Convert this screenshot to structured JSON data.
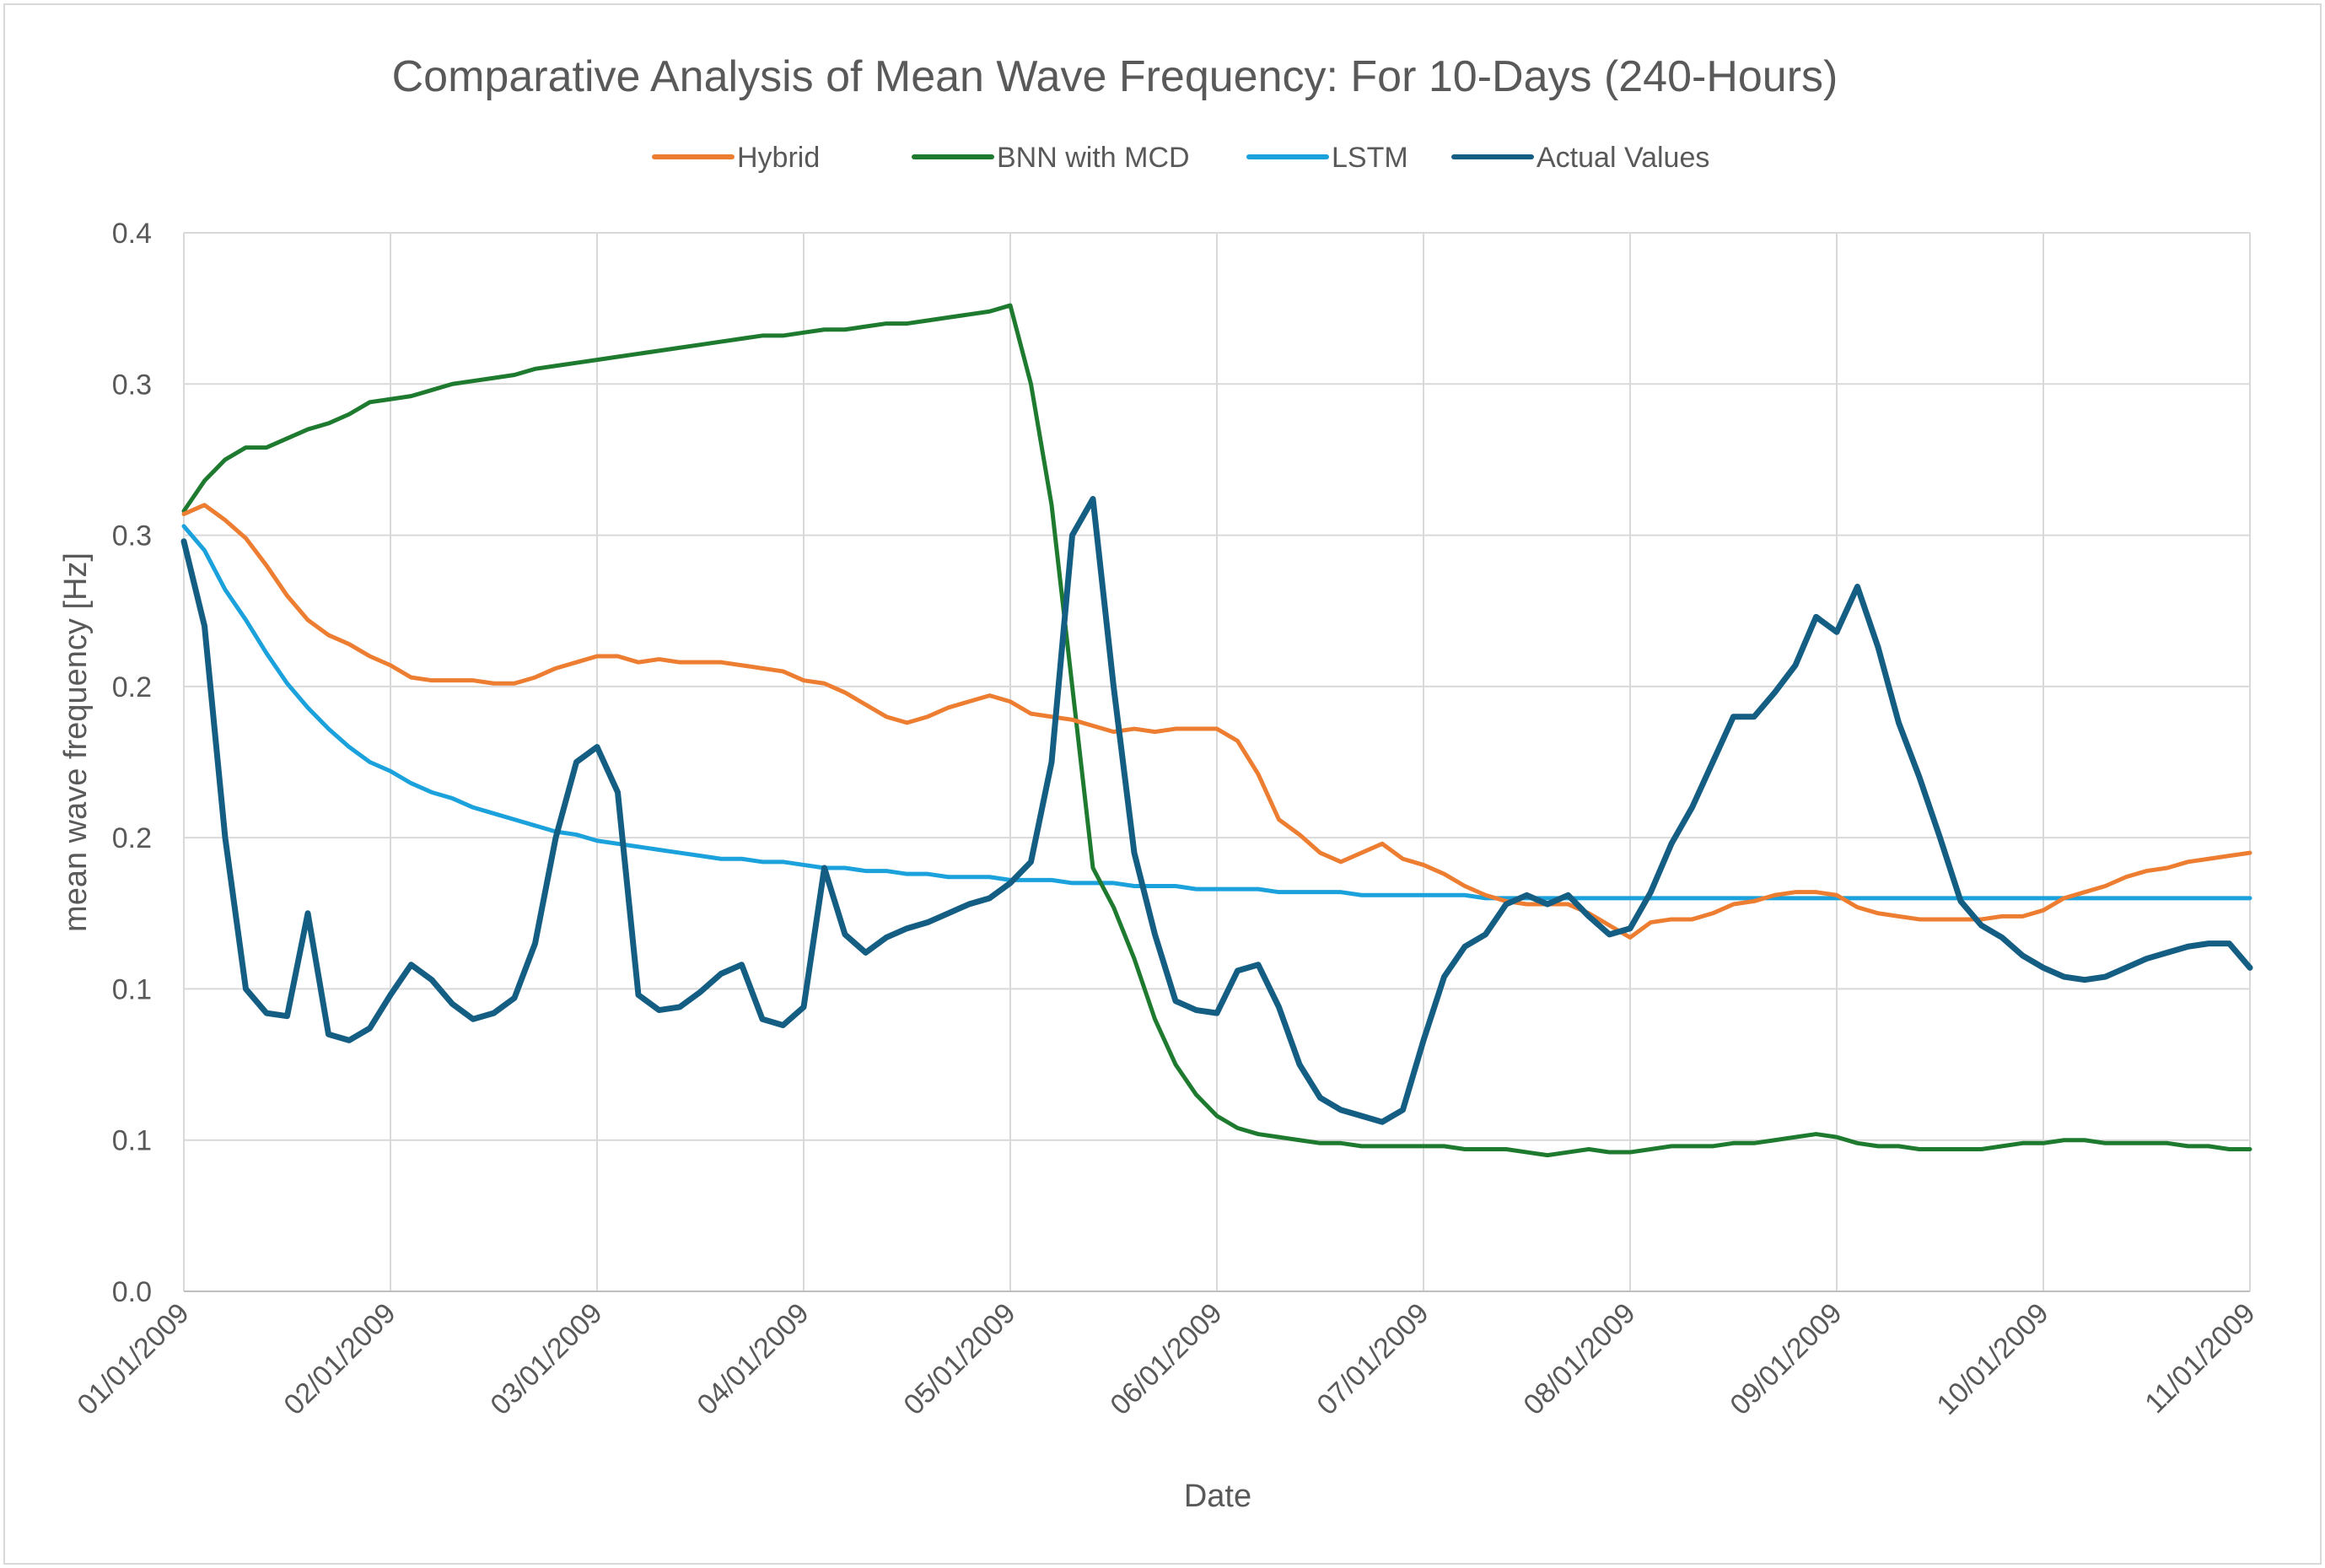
{
  "chart_data": {
    "type": "line",
    "title": "Comparative Analysis of Mean Wave Frequency: For 10-Days (240-Hours)",
    "xlabel": "Date",
    "ylabel": "mean wave frequency [Hz]",
    "x_tick_labels": [
      "01/01/2009",
      "02/01/2009",
      "03/01/2009",
      "04/01/2009",
      "05/01/2009",
      "06/01/2009",
      "07/01/2009",
      "08/01/2009",
      "09/01/2009",
      "10/01/2009",
      "11/01/2009"
    ],
    "y_tick_labels": [
      "0.0",
      "0.1",
      "0.1",
      "0.2",
      "0.2",
      "0.3",
      "0.3",
      "0.4"
    ],
    "y_tick_values": [
      0.0,
      0.05,
      0.1,
      0.15,
      0.2,
      0.25,
      0.3,
      0.35
    ],
    "ylim": [
      0.0,
      0.35
    ],
    "grid": true,
    "legend_position": "top",
    "x_positions_note_free": true,
    "x": [
      0,
      0.1,
      0.2,
      0.3,
      0.4,
      0.5,
      0.6,
      0.7,
      0.8,
      0.9,
      1.0,
      1.1,
      1.2,
      1.3,
      1.4,
      1.5,
      1.6,
      1.7,
      1.8,
      1.9,
      2.0,
      2.1,
      2.2,
      2.3,
      2.4,
      2.5,
      2.6,
      2.7,
      2.8,
      2.9,
      3.0,
      3.1,
      3.2,
      3.3,
      3.4,
      3.5,
      3.6,
      3.7,
      3.8,
      3.9,
      4.0,
      4.1,
      4.2,
      4.3,
      4.4,
      4.5,
      4.6,
      4.7,
      4.8,
      4.9,
      5.0,
      5.1,
      5.2,
      5.3,
      5.4,
      5.5,
      5.6,
      5.7,
      5.8,
      5.9,
      6.0,
      6.1,
      6.2,
      6.3,
      6.4,
      6.5,
      6.6,
      6.7,
      6.8,
      6.9,
      7.0,
      7.1,
      7.2,
      7.3,
      7.4,
      7.5,
      7.6,
      7.7,
      7.8,
      7.9,
      8.0,
      8.1,
      8.2,
      8.3,
      8.4,
      8.5,
      8.6,
      8.7,
      8.8,
      8.9,
      9.0,
      9.1,
      9.2,
      9.3,
      9.4,
      9.5,
      9.6,
      9.7,
      9.8,
      9.9,
      10.0
    ],
    "series": [
      {
        "name": "Hybrid",
        "color": "#ED7D31",
        "values": [
          0.257,
          0.26,
          0.255,
          0.249,
          0.24,
          0.23,
          0.222,
          0.217,
          0.214,
          0.21,
          0.207,
          0.203,
          0.202,
          0.202,
          0.202,
          0.201,
          0.201,
          0.203,
          0.206,
          0.208,
          0.21,
          0.21,
          0.208,
          0.209,
          0.208,
          0.208,
          0.208,
          0.207,
          0.206,
          0.205,
          0.202,
          0.201,
          0.198,
          0.194,
          0.19,
          0.188,
          0.19,
          0.193,
          0.195,
          0.197,
          0.195,
          0.191,
          0.19,
          0.189,
          0.187,
          0.185,
          0.186,
          0.185,
          0.186,
          0.186,
          0.186,
          0.182,
          0.171,
          0.156,
          0.151,
          0.145,
          0.142,
          0.145,
          0.148,
          0.143,
          0.141,
          0.138,
          0.134,
          0.131,
          0.129,
          0.128,
          0.128,
          0.128,
          0.125,
          0.121,
          0.117,
          0.122,
          0.123,
          0.123,
          0.125,
          0.128,
          0.129,
          0.131,
          0.132,
          0.132,
          0.131,
          0.127,
          0.125,
          0.124,
          0.123,
          0.123,
          0.123,
          0.123,
          0.124,
          0.124,
          0.126,
          0.13,
          0.132,
          0.134,
          0.137,
          0.139,
          0.14,
          0.142,
          0.143,
          0.144,
          0.145
        ]
      },
      {
        "name": "BNN with MCD",
        "color": "#1E7A2E",
        "values": [
          0.258,
          0.268,
          0.275,
          0.279,
          0.279,
          0.282,
          0.285,
          0.287,
          0.29,
          0.294,
          0.295,
          0.296,
          0.298,
          0.3,
          0.301,
          0.302,
          0.303,
          0.305,
          0.306,
          0.307,
          0.308,
          0.309,
          0.31,
          0.311,
          0.312,
          0.313,
          0.314,
          0.315,
          0.316,
          0.316,
          0.317,
          0.318,
          0.318,
          0.319,
          0.32,
          0.32,
          0.321,
          0.322,
          0.323,
          0.324,
          0.326,
          0.3,
          0.26,
          0.2,
          0.14,
          0.127,
          0.11,
          0.09,
          0.075,
          0.065,
          0.058,
          0.054,
          0.052,
          0.051,
          0.05,
          0.049,
          0.049,
          0.048,
          0.048,
          0.048,
          0.048,
          0.048,
          0.047,
          0.047,
          0.047,
          0.046,
          0.045,
          0.046,
          0.047,
          0.046,
          0.046,
          0.047,
          0.048,
          0.048,
          0.048,
          0.049,
          0.049,
          0.05,
          0.051,
          0.052,
          0.051,
          0.049,
          0.048,
          0.048,
          0.047,
          0.047,
          0.047,
          0.047,
          0.048,
          0.049,
          0.049,
          0.05,
          0.05,
          0.049,
          0.049,
          0.049,
          0.049,
          0.048,
          0.048,
          0.047,
          0.047
        ]
      },
      {
        "name": "LSTM",
        "color": "#1BA1DB",
        "values": [
          0.253,
          0.245,
          0.232,
          0.222,
          0.211,
          0.201,
          0.193,
          0.186,
          0.18,
          0.175,
          0.172,
          0.168,
          0.165,
          0.163,
          0.16,
          0.158,
          0.156,
          0.154,
          0.152,
          0.151,
          0.149,
          0.148,
          0.147,
          0.146,
          0.145,
          0.144,
          0.143,
          0.143,
          0.142,
          0.142,
          0.141,
          0.14,
          0.14,
          0.139,
          0.139,
          0.138,
          0.138,
          0.137,
          0.137,
          0.137,
          0.136,
          0.136,
          0.136,
          0.135,
          0.135,
          0.135,
          0.134,
          0.134,
          0.134,
          0.133,
          0.133,
          0.133,
          0.133,
          0.132,
          0.132,
          0.132,
          0.132,
          0.131,
          0.131,
          0.131,
          0.131,
          0.131,
          0.131,
          0.13,
          0.13,
          0.13,
          0.13,
          0.13,
          0.13,
          0.13,
          0.13,
          0.13,
          0.13,
          0.13,
          0.13,
          0.13,
          0.13,
          0.13,
          0.13,
          0.13,
          0.13,
          0.13,
          0.13,
          0.13,
          0.13,
          0.13,
          0.13,
          0.13,
          0.13,
          0.13,
          0.13,
          0.13,
          0.13,
          0.13,
          0.13,
          0.13,
          0.13,
          0.13,
          0.13,
          0.13,
          0.13
        ]
      },
      {
        "name": "Actual Values",
        "color": "#155E83",
        "values": [
          0.248,
          0.22,
          0.15,
          0.1,
          0.092,
          0.091,
          0.125,
          0.085,
          0.083,
          0.087,
          0.098,
          0.108,
          0.103,
          0.095,
          0.09,
          0.092,
          0.097,
          0.115,
          0.15,
          0.175,
          0.18,
          0.165,
          0.098,
          0.093,
          0.094,
          0.099,
          0.105,
          0.108,
          0.09,
          0.088,
          0.094,
          0.14,
          0.118,
          0.112,
          0.117,
          0.12,
          0.122,
          0.125,
          0.128,
          0.13,
          0.135,
          0.142,
          0.175,
          0.25,
          0.262,
          0.2,
          0.145,
          0.118,
          0.096,
          0.093,
          0.092,
          0.106,
          0.108,
          0.094,
          0.075,
          0.064,
          0.06,
          0.058,
          0.056,
          0.06,
          0.083,
          0.104,
          0.114,
          0.118,
          0.128,
          0.131,
          0.128,
          0.131,
          0.124,
          0.118,
          0.12,
          0.132,
          0.148,
          0.16,
          0.175,
          0.19,
          0.19,
          0.198,
          0.207,
          0.223,
          0.218,
          0.233,
          0.213,
          0.188,
          0.17,
          0.15,
          0.129,
          0.121,
          0.117,
          0.111,
          0.107,
          0.104,
          0.103,
          0.104,
          0.107,
          0.11,
          0.112,
          0.114,
          0.115,
          0.115,
          0.107
        ]
      }
    ]
  }
}
